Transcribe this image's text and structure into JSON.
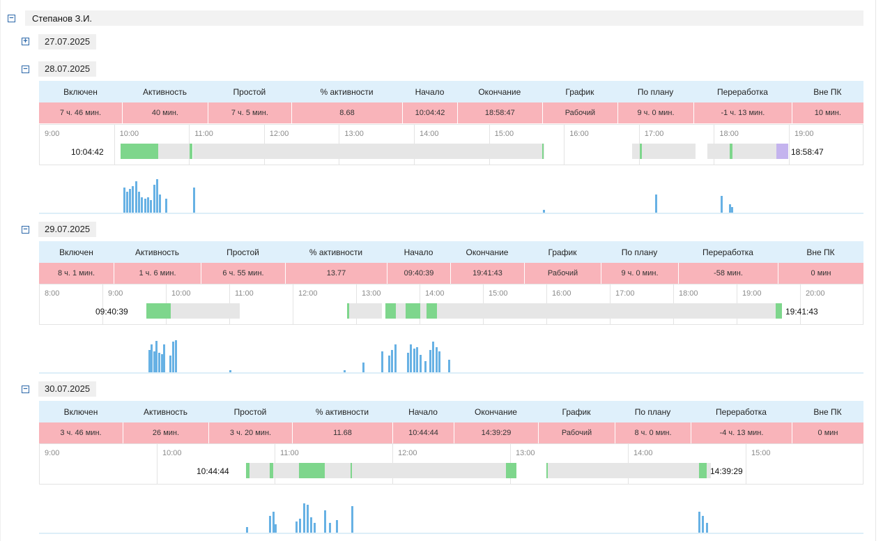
{
  "person": {
    "name": "Степанов З.И."
  },
  "colors": {
    "header_bg": "#dff0fb",
    "values_bg": "#f9b4ba",
    "active": "#7ed68c",
    "idle": "#e6e6e6",
    "overtime": "#c4b3ee",
    "histogram": "#67b1e4"
  },
  "icons": {
    "expand": "+",
    "collapse": "−"
  },
  "collapsed_days": [
    {
      "date": "27.07.2025"
    }
  ],
  "days": [
    {
      "date": "28.07.2025",
      "headers": [
        "Включен",
        "Активность",
        "Простой",
        "% активности",
        "Начало",
        "Окончание",
        "График",
        "По плану",
        "Переработка",
        "Вне ПК"
      ],
      "values": [
        "7 ч. 46 мин.",
        "40 мин.",
        "7 ч. 5 мин.",
        "8.68",
        "10:04:42",
        "18:58:47",
        "Рабочий",
        "9 ч. 0 мин.",
        "-1 ч. 13 мин.",
        "10 мин."
      ],
      "hours": [
        "9:00",
        "10:00",
        "11:00",
        "12:00",
        "13:00",
        "14:00",
        "15:00",
        "16:00",
        "17:00",
        "18:00",
        "19:00"
      ],
      "start_time": "10:04:42",
      "end_time": "18:58:47",
      "tl_start": 9,
      "segments": [
        {
          "type": "active",
          "from": 10.08,
          "to": 10.58
        },
        {
          "type": "idle",
          "from": 10.58,
          "to": 11.0
        },
        {
          "type": "active",
          "from": 11.0,
          "to": 11.04
        },
        {
          "type": "idle",
          "from": 11.04,
          "to": 15.73
        },
        {
          "type": "active",
          "from": 15.7,
          "to": 15.72
        },
        {
          "type": "idle",
          "from": 16.9,
          "to": 17.75
        },
        {
          "type": "active",
          "from": 17.0,
          "to": 17.03
        },
        {
          "type": "idle",
          "from": 17.9,
          "to": 18.82
        },
        {
          "type": "active",
          "from": 18.2,
          "to": 18.24
        },
        {
          "type": "over",
          "from": 18.82,
          "to": 18.98
        }
      ],
      "histogram": [
        [
          10.12,
          36
        ],
        [
          10.16,
          30
        ],
        [
          10.2,
          34
        ],
        [
          10.24,
          38
        ],
        [
          10.28,
          45
        ],
        [
          10.32,
          30
        ],
        [
          10.36,
          22
        ],
        [
          10.4,
          20
        ],
        [
          10.44,
          22
        ],
        [
          10.48,
          18
        ],
        [
          10.52,
          40
        ],
        [
          10.56,
          48
        ],
        [
          10.6,
          26
        ],
        [
          10.68,
          20
        ],
        [
          11.05,
          36
        ],
        [
          15.72,
          4
        ],
        [
          17.22,
          26
        ],
        [
          18.09,
          24
        ],
        [
          18.2,
          12
        ],
        [
          18.23,
          8
        ]
      ]
    },
    {
      "date": "29.07.2025",
      "headers": [
        "Включен",
        "Активность",
        "Простой",
        "% активности",
        "Начало",
        "Окончание",
        "График",
        "По плану",
        "Переработка",
        "Вне ПК"
      ],
      "values": [
        "8 ч. 1 мин.",
        "1 ч. 6 мин.",
        "6 ч. 55 мин.",
        "13.77",
        "09:40:39",
        "19:41:43",
        "Рабочий",
        "9 ч. 0 мин.",
        "-58 мин.",
        "0 мин"
      ],
      "hours": [
        "8:00",
        "9:00",
        "10:00",
        "11:00",
        "12:00",
        "13:00",
        "14:00",
        "15:00",
        "16:00",
        "17:00",
        "18:00",
        "19:00",
        "20:00"
      ],
      "start_time": "09:40:39",
      "end_time": "19:41:43",
      "tl_start": 8,
      "segments": [
        {
          "type": "active",
          "from": 9.68,
          "to": 9.98
        },
        {
          "type": "active",
          "from": 9.98,
          "to": 10.07
        },
        {
          "type": "idle",
          "from": 10.07,
          "to": 11.15
        },
        {
          "type": "idle",
          "from": 12.85,
          "to": 13.4
        },
        {
          "type": "active",
          "from": 12.85,
          "to": 12.88
        },
        {
          "type": "active",
          "from": 13.45,
          "to": 13.62
        },
        {
          "type": "idle",
          "from": 13.62,
          "to": 13.77
        },
        {
          "type": "active",
          "from": 13.77,
          "to": 14.0
        },
        {
          "type": "idle",
          "from": 14.0,
          "to": 14.1
        },
        {
          "type": "active",
          "from": 14.1,
          "to": 14.26
        },
        {
          "type": "idle",
          "from": 14.26,
          "to": 19.6
        },
        {
          "type": "active",
          "from": 19.6,
          "to": 19.7
        }
      ],
      "histogram": [
        [
          9.72,
          32
        ],
        [
          9.76,
          40
        ],
        [
          9.8,
          30
        ],
        [
          9.84,
          45
        ],
        [
          9.88,
          28
        ],
        [
          9.92,
          26
        ],
        [
          9.96,
          40
        ],
        [
          10.06,
          24
        ],
        [
          10.1,
          44
        ],
        [
          10.14,
          46
        ],
        [
          11.0,
          3
        ],
        [
          12.8,
          3
        ],
        [
          13.1,
          14
        ],
        [
          13.4,
          30
        ],
        [
          13.5,
          24
        ],
        [
          13.55,
          32
        ],
        [
          13.6,
          40
        ],
        [
          13.8,
          28
        ],
        [
          13.85,
          40
        ],
        [
          13.9,
          34
        ],
        [
          13.95,
          36
        ],
        [
          14.0,
          25
        ],
        [
          14.08,
          16
        ],
        [
          14.15,
          32
        ],
        [
          14.2,
          44
        ],
        [
          14.25,
          36
        ],
        [
          14.3,
          30
        ],
        [
          14.45,
          18
        ]
      ]
    },
    {
      "date": "30.07.2025",
      "headers": [
        "Включен",
        "Активность",
        "Простой",
        "% активности",
        "Начало",
        "Окончание",
        "График",
        "По плану",
        "Переработка",
        "Вне ПК"
      ],
      "values": [
        "3 ч. 46 мин.",
        "26 мин.",
        "3 ч. 20 мин.",
        "11.68",
        "10:44:44",
        "14:39:29",
        "Рабочий",
        "8 ч. 0 мин.",
        "-4 ч. 13 мин.",
        "0 мин"
      ],
      "hours": [
        "9:00",
        "10:00",
        "11:00",
        "12:00",
        "13:00",
        "14:00",
        "15:00"
      ],
      "start_time": "10:44:44",
      "end_time": "14:39:29",
      "tl_start": 9,
      "segments": [
        {
          "type": "idle",
          "from": 10.75,
          "to": 13.05
        },
        {
          "type": "active",
          "from": 10.75,
          "to": 10.78
        },
        {
          "type": "active",
          "from": 10.95,
          "to": 10.98
        },
        {
          "type": "active",
          "from": 11.2,
          "to": 11.42
        },
        {
          "type": "active",
          "from": 11.64,
          "to": 11.65
        },
        {
          "type": "active",
          "from": 12.96,
          "to": 13.05
        },
        {
          "type": "idle",
          "from": 13.3,
          "to": 14.7
        },
        {
          "type": "active",
          "from": 13.3,
          "to": 13.31
        },
        {
          "type": "active",
          "from": 14.6,
          "to": 14.66
        }
      ],
      "histogram": [
        [
          10.76,
          8
        ],
        [
          10.95,
          24
        ],
        [
          10.98,
          30
        ],
        [
          11.0,
          12
        ],
        [
          11.18,
          16
        ],
        [
          11.21,
          20
        ],
        [
          11.24,
          42
        ],
        [
          11.27,
          40
        ],
        [
          11.3,
          22
        ],
        [
          11.33,
          14
        ],
        [
          11.42,
          32
        ],
        [
          11.46,
          14
        ],
        [
          11.52,
          18
        ],
        [
          11.65,
          38
        ],
        [
          14.6,
          30
        ],
        [
          14.63,
          24
        ],
        [
          14.66,
          14
        ]
      ]
    }
  ]
}
